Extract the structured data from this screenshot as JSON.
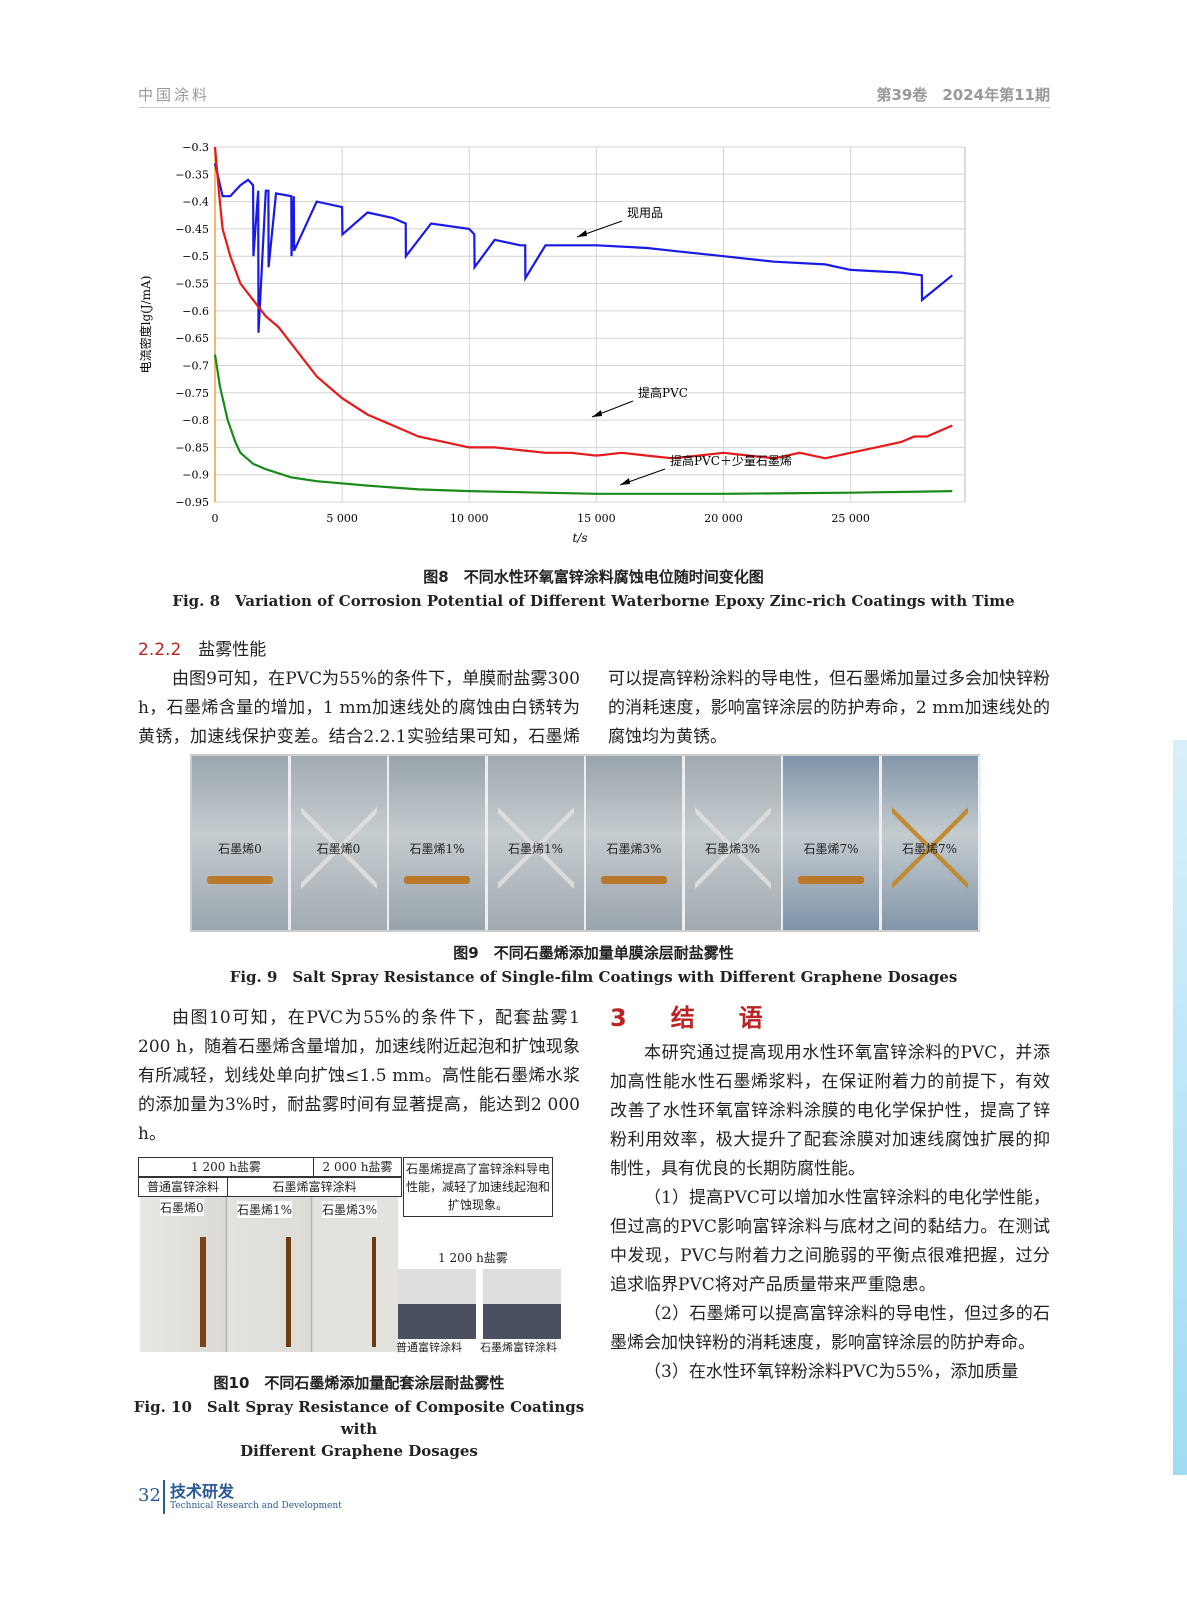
{
  "header": {
    "journal": "中国涂料",
    "issue": "第39卷　2024年第11期"
  },
  "fig8": {
    "caption_zh": "图8　不同水性环氧富锌涂料腐蚀电位随时间变化图",
    "caption_en": "Fig. 8　Variation of Corrosion Potential of Different Waterborne Epoxy Zinc-rich Coatings with Time"
  },
  "chart_data": {
    "type": "line",
    "xlabel": "t/s",
    "ylabel": "电流密度lg(J/mA)",
    "xlim": [
      0,
      29500
    ],
    "ylim": [
      -0.95,
      -0.3
    ],
    "grid": true,
    "xticks": [
      "0",
      "5 000",
      "10 000",
      "15 000",
      "20 000",
      "25 000"
    ],
    "yticks": [
      "−0.3",
      "−0.35",
      "−0.4",
      "−0.45",
      "−0.5",
      "−0.55",
      "−0.6",
      "−0.65",
      "−0.7",
      "−0.75",
      "−0.8",
      "−0.85",
      "−0.9",
      "−0.95"
    ],
    "series": [
      {
        "name": "现用品",
        "color": "#1a1ae6",
        "x": [
          0,
          300,
          600,
          1000,
          1300,
          1500,
          1510,
          1700,
          1710,
          2000,
          2100,
          2110,
          2400,
          3000,
          3010,
          3100,
          3110,
          4000,
          5000,
          5010,
          6000,
          7000,
          7500,
          7510,
          8500,
          10000,
          10200,
          10210,
          11000,
          12000,
          12200,
          12210,
          13000,
          15000,
          17000,
          18000,
          20000,
          22000,
          24000,
          25000,
          27000,
          27800,
          27810,
          29000
        ],
        "y": [
          -0.33,
          -0.39,
          -0.39,
          -0.37,
          -0.36,
          -0.37,
          -0.5,
          -0.38,
          -0.64,
          -0.38,
          -0.38,
          -0.52,
          -0.385,
          -0.39,
          -0.5,
          -0.39,
          -0.49,
          -0.4,
          -0.41,
          -0.46,
          -0.42,
          -0.43,
          -0.44,
          -0.5,
          -0.44,
          -0.45,
          -0.46,
          -0.52,
          -0.47,
          -0.48,
          -0.48,
          -0.54,
          -0.48,
          -0.48,
          -0.485,
          -0.49,
          -0.5,
          -0.51,
          -0.515,
          -0.525,
          -0.53,
          -0.535,
          -0.58,
          -0.535
        ]
      },
      {
        "name": "提高PVC",
        "color": "#e61a1a",
        "x": [
          0,
          150,
          300,
          600,
          1000,
          1500,
          2000,
          2500,
          3000,
          3500,
          4000,
          5000,
          6000,
          7000,
          8000,
          9000,
          10000,
          11000,
          12000,
          13000,
          14000,
          15000,
          16000,
          17000,
          18000,
          19000,
          20000,
          21000,
          22000,
          23000,
          24000,
          25000,
          26000,
          27000,
          27500,
          28000,
          29000
        ],
        "y": [
          -0.3,
          -0.38,
          -0.45,
          -0.5,
          -0.55,
          -0.58,
          -0.61,
          -0.63,
          -0.66,
          -0.69,
          -0.72,
          -0.76,
          -0.79,
          -0.81,
          -0.83,
          -0.84,
          -0.85,
          -0.85,
          -0.855,
          -0.86,
          -0.86,
          -0.865,
          -0.86,
          -0.865,
          -0.87,
          -0.865,
          -0.86,
          -0.865,
          -0.87,
          -0.86,
          -0.87,
          -0.86,
          -0.85,
          -0.84,
          -0.83,
          -0.83,
          -0.81
        ]
      },
      {
        "name": "提高PVC＋少量石墨烯",
        "color": "#1a8a1a",
        "x": [
          0,
          200,
          500,
          800,
          1000,
          1500,
          2000,
          3000,
          4000,
          6000,
          8000,
          10000,
          15000,
          20000,
          25000,
          29000
        ],
        "y": [
          -0.68,
          -0.74,
          -0.8,
          -0.84,
          -0.86,
          -0.88,
          -0.89,
          -0.905,
          -0.912,
          -0.92,
          -0.927,
          -0.93,
          -0.935,
          -0.935,
          -0.933,
          -0.93
        ]
      }
    ]
  },
  "sec222": {
    "num": "2.2.2",
    "title": "盐雾性能",
    "p1": "由图9可知，在PVC为55%的条件下，单膜耐盐雾300 h，石墨烯含量的增加，1 mm加速线处的腐蚀由白锈转为黄锈，加速线保护变差。结合2.2.1实验结果可知，石墨烯可以提高锌粉涂料的导电性，但石墨烯加量过多会加快锌粉的消耗速度，影响富锌涂层的防护寿命，2 mm加速线处的腐蚀均为黄锈。"
  },
  "fig9": {
    "panels": [
      "石墨烯0",
      "石墨烯0",
      "石墨烯1%",
      "石墨烯1%",
      "石墨烯3%",
      "石墨烯3%",
      "石墨烯7%",
      "石墨烯7%"
    ],
    "caption_zh": "图9　不同石墨烯添加量单膜涂层耐盐雾性",
    "caption_en": "Fig. 9　Salt Spray Resistance of Single-film Coatings with Different Graphene Dosages"
  },
  "left2": {
    "p1": "由图10可知，在PVC为55%的条件下，配套盐雾1 200 h，随着石墨烯含量增加，加速线附近起泡和扩蚀现象有所减轻，划线处单向扩蚀≤1.5 mm。高性能石墨烯水浆的添加量为3%时，耐盐雾时间有显著提高，能达到2 000 h。"
  },
  "fig10": {
    "h1": "1 200 h盐雾",
    "h2": "2 000 h盐雾",
    "c1": "普通富锌涂料",
    "c2": "石墨烯富锌涂料",
    "labels": [
      "石墨烯0",
      "石墨烯1%",
      "石墨烯3%"
    ],
    "note": "石墨烯提高了富锌涂料导电性能，减轻了加速线起泡和扩蚀现象。",
    "small_title": "1 200 h盐雾",
    "small1": "普通富锌涂料",
    "small2": "石墨烯富锌涂料",
    "caption_zh": "图10　不同石墨烯添加量配套涂层耐盐雾性",
    "caption_en1": "Fig. 10　Salt Spray Resistance of Composite Coatings with",
    "caption_en2": "Different Graphene Dosages"
  },
  "sec3": {
    "title": "3　结　语",
    "p1": "本研究通过提高现用水性环氧富锌涂料的PVC，并添加高性能水性石墨烯浆料，在保证附着力的前提下，有效改善了水性环氧富锌涂料涂膜的电化学保护性，提高了锌粉利用效率，极大提升了配套涂膜对加速线腐蚀扩展的抑制性，具有优良的长期防腐性能。",
    "p2": "（1）提高PVC可以增加水性富锌涂料的电化学性能，但过高的PVC影响富锌涂料与底材之间的黏结力。在测试中发现，PVC与附着力之间脆弱的平衡点很难把握，过分追求临界PVC将对产品质量带来严重隐患。",
    "p3": "（2）石墨烯可以提高富锌涂料的导电性，但过多的石墨烯会加快锌粉的消耗速度，影响富锌涂层的防护寿命。",
    "p4": "（3）在水性环氧锌粉涂料PVC为55%，添加质量"
  },
  "footer": {
    "page": "32",
    "section_zh": "技术研发",
    "section_en": "Technical Research and Development"
  }
}
